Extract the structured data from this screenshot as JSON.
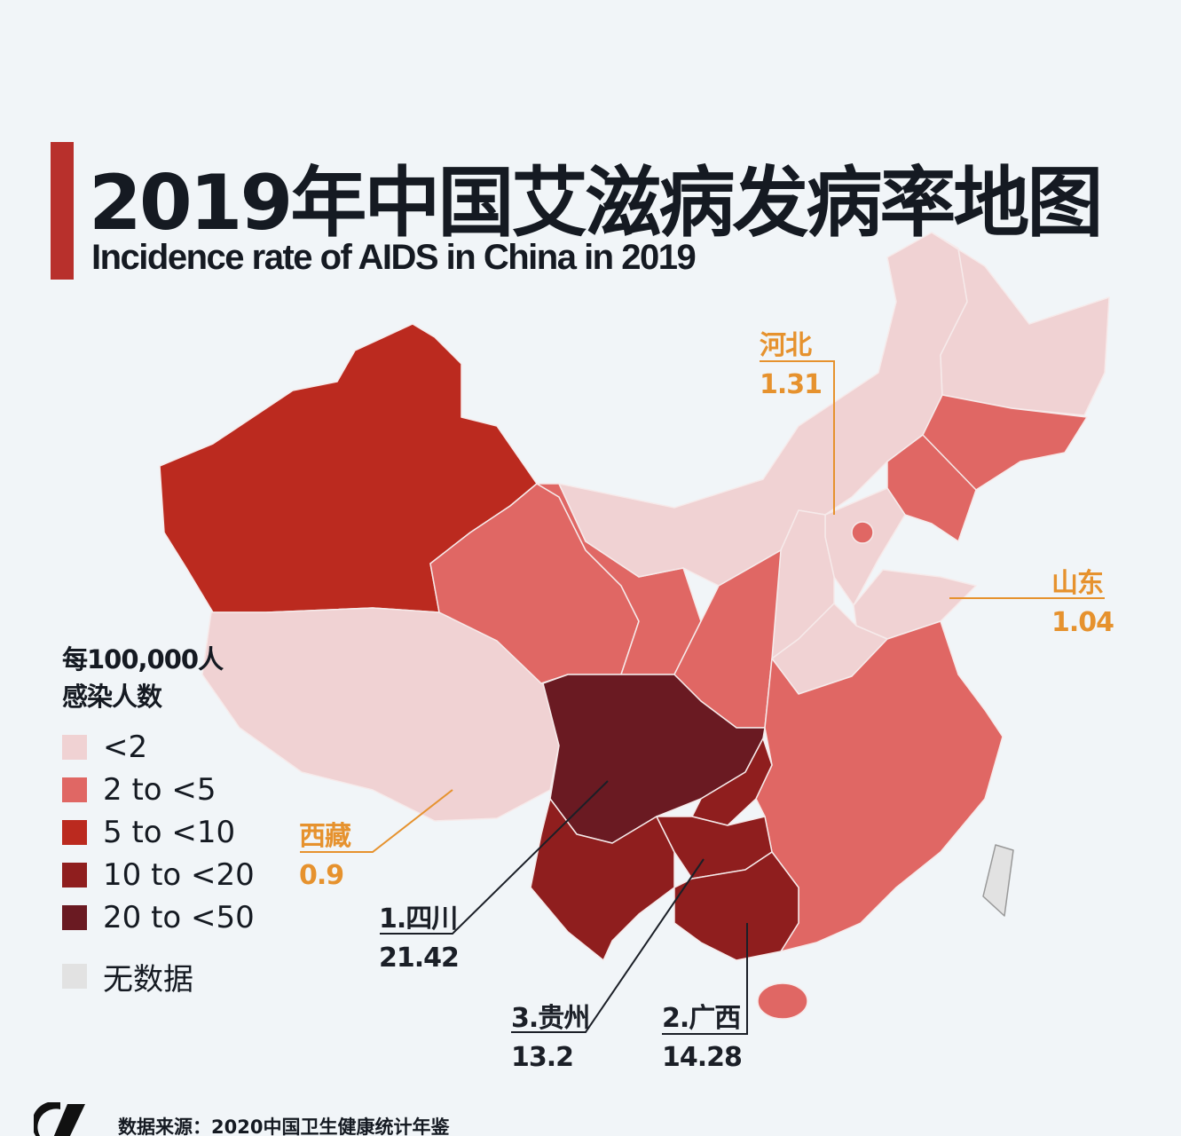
{
  "title": "2019年中国艾滋病发病率地图",
  "subtitle": "Incidence rate of AIDS in China in 2019",
  "legend": {
    "title_line1": "每100,000人",
    "title_line2": "感染人数",
    "items": [
      {
        "label": "<2",
        "color": "#f0d2d3"
      },
      {
        "label": "2 to <5",
        "color": "#e06764"
      },
      {
        "label": "5 to <10",
        "color": "#bb2a1f"
      },
      {
        "label": "10 to <20",
        "color": "#8f1e1e"
      },
      {
        "label": "20 to <50",
        "color": "#6a1a22"
      }
    ],
    "no_data": {
      "label": "无数据",
      "color": "#e2e2e2"
    }
  },
  "annotations": {
    "hebei": {
      "name": "河北",
      "value": "1.31"
    },
    "shandong": {
      "name": "山东",
      "value": "1.04"
    },
    "tibet": {
      "name": "西藏",
      "value": "0.9"
    },
    "sichuan": {
      "name": "1.四川",
      "value": "21.42"
    },
    "guizhou": {
      "name": "3.贵州",
      "value": "13.2"
    },
    "guangxi": {
      "name": "2.广西",
      "value": "14.28"
    }
  },
  "colors": {
    "accent_bar": "#b8302c",
    "annotation_orange": "#e6922e"
  },
  "source": "数据来源：2020中国卫生健康统计年鉴"
}
